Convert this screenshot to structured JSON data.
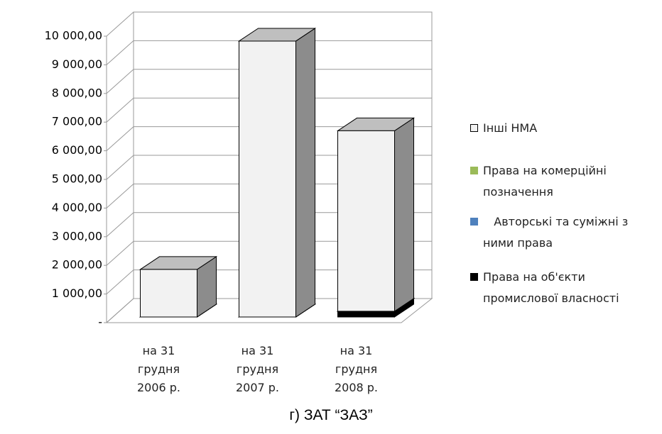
{
  "chart_data": {
    "type": "bar3d_stacked",
    "title": "г) ЗАТ “ЗАЗ”",
    "categories": [
      "на 31 грудня 2006 р.",
      "на 31 грудня 2007 р.",
      "на 31 грудня 2008 р."
    ],
    "series": [
      {
        "name": "Інші НМА",
        "color": "#f2f2f2",
        "values": [
          1660,
          9630,
          6300
        ]
      },
      {
        "name": "Права на комерційні позначення",
        "color": "#9bbb59",
        "values": [
          0,
          0,
          0
        ]
      },
      {
        "name": "   Авторські та суміжні з ними права",
        "color": "#4f81bd",
        "values": [
          0,
          0,
          0
        ]
      },
      {
        "name": "Права на об'єкти промислової власності",
        "color": "#000000",
        "values": [
          0,
          0,
          200
        ]
      }
    ],
    "stacked": true,
    "grid": true,
    "legend": "right",
    "ylim": [
      0,
      10000
    ],
    "yticks": [
      {
        "value": 0,
        "label": "-"
      },
      {
        "value": 1000,
        "label": "1 000,00"
      },
      {
        "value": 2000,
        "label": "2 000,00"
      },
      {
        "value": 3000,
        "label": "3 000,00"
      },
      {
        "value": 4000,
        "label": "4 000,00"
      },
      {
        "value": 5000,
        "label": "5 000,00"
      },
      {
        "value": 6000,
        "label": "6 000,00"
      },
      {
        "value": 7000,
        "label": "7 000,00"
      },
      {
        "value": 8000,
        "label": "8 000,00"
      },
      {
        "value": 9000,
        "label": "9 000,00"
      },
      {
        "value": 10000,
        "label": "10 000,00"
      }
    ]
  }
}
